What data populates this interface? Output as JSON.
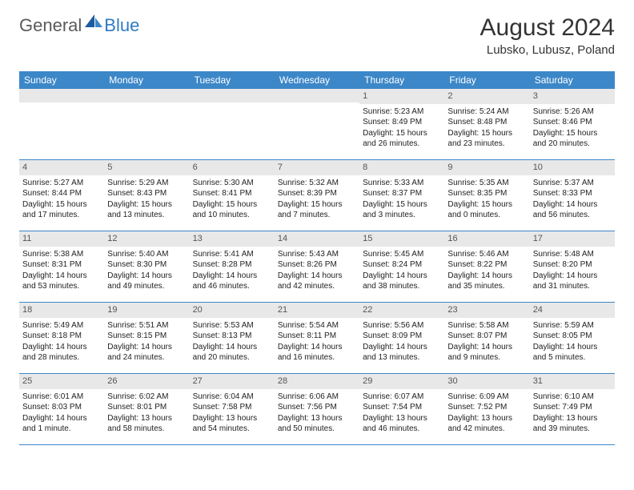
{
  "logo": {
    "general": "General",
    "blue": "Blue"
  },
  "title": "August 2024",
  "location": "Lubsko, Lubusz, Poland",
  "colors": {
    "header_bg": "#3c87c8",
    "header_text": "#ffffff",
    "number_bar_bg": "#e8e8e8",
    "row_border": "#3c87c8",
    "logo_general": "#5a5a5a",
    "logo_blue": "#2f7ac0",
    "text": "#222222"
  },
  "day_headers": [
    "Sunday",
    "Monday",
    "Tuesday",
    "Wednesday",
    "Thursday",
    "Friday",
    "Saturday"
  ],
  "weeks": [
    [
      {
        "n": "",
        "sunrise": "",
        "sunset": "",
        "daylight": ""
      },
      {
        "n": "",
        "sunrise": "",
        "sunset": "",
        "daylight": ""
      },
      {
        "n": "",
        "sunrise": "",
        "sunset": "",
        "daylight": ""
      },
      {
        "n": "",
        "sunrise": "",
        "sunset": "",
        "daylight": ""
      },
      {
        "n": "1",
        "sunrise": "Sunrise: 5:23 AM",
        "sunset": "Sunset: 8:49 PM",
        "daylight": "Daylight: 15 hours and 26 minutes."
      },
      {
        "n": "2",
        "sunrise": "Sunrise: 5:24 AM",
        "sunset": "Sunset: 8:48 PM",
        "daylight": "Daylight: 15 hours and 23 minutes."
      },
      {
        "n": "3",
        "sunrise": "Sunrise: 5:26 AM",
        "sunset": "Sunset: 8:46 PM",
        "daylight": "Daylight: 15 hours and 20 minutes."
      }
    ],
    [
      {
        "n": "4",
        "sunrise": "Sunrise: 5:27 AM",
        "sunset": "Sunset: 8:44 PM",
        "daylight": "Daylight: 15 hours and 17 minutes."
      },
      {
        "n": "5",
        "sunrise": "Sunrise: 5:29 AM",
        "sunset": "Sunset: 8:43 PM",
        "daylight": "Daylight: 15 hours and 13 minutes."
      },
      {
        "n": "6",
        "sunrise": "Sunrise: 5:30 AM",
        "sunset": "Sunset: 8:41 PM",
        "daylight": "Daylight: 15 hours and 10 minutes."
      },
      {
        "n": "7",
        "sunrise": "Sunrise: 5:32 AM",
        "sunset": "Sunset: 8:39 PM",
        "daylight": "Daylight: 15 hours and 7 minutes."
      },
      {
        "n": "8",
        "sunrise": "Sunrise: 5:33 AM",
        "sunset": "Sunset: 8:37 PM",
        "daylight": "Daylight: 15 hours and 3 minutes."
      },
      {
        "n": "9",
        "sunrise": "Sunrise: 5:35 AM",
        "sunset": "Sunset: 8:35 PM",
        "daylight": "Daylight: 15 hours and 0 minutes."
      },
      {
        "n": "10",
        "sunrise": "Sunrise: 5:37 AM",
        "sunset": "Sunset: 8:33 PM",
        "daylight": "Daylight: 14 hours and 56 minutes."
      }
    ],
    [
      {
        "n": "11",
        "sunrise": "Sunrise: 5:38 AM",
        "sunset": "Sunset: 8:31 PM",
        "daylight": "Daylight: 14 hours and 53 minutes."
      },
      {
        "n": "12",
        "sunrise": "Sunrise: 5:40 AM",
        "sunset": "Sunset: 8:30 PM",
        "daylight": "Daylight: 14 hours and 49 minutes."
      },
      {
        "n": "13",
        "sunrise": "Sunrise: 5:41 AM",
        "sunset": "Sunset: 8:28 PM",
        "daylight": "Daylight: 14 hours and 46 minutes."
      },
      {
        "n": "14",
        "sunrise": "Sunrise: 5:43 AM",
        "sunset": "Sunset: 8:26 PM",
        "daylight": "Daylight: 14 hours and 42 minutes."
      },
      {
        "n": "15",
        "sunrise": "Sunrise: 5:45 AM",
        "sunset": "Sunset: 8:24 PM",
        "daylight": "Daylight: 14 hours and 38 minutes."
      },
      {
        "n": "16",
        "sunrise": "Sunrise: 5:46 AM",
        "sunset": "Sunset: 8:22 PM",
        "daylight": "Daylight: 14 hours and 35 minutes."
      },
      {
        "n": "17",
        "sunrise": "Sunrise: 5:48 AM",
        "sunset": "Sunset: 8:20 PM",
        "daylight": "Daylight: 14 hours and 31 minutes."
      }
    ],
    [
      {
        "n": "18",
        "sunrise": "Sunrise: 5:49 AM",
        "sunset": "Sunset: 8:18 PM",
        "daylight": "Daylight: 14 hours and 28 minutes."
      },
      {
        "n": "19",
        "sunrise": "Sunrise: 5:51 AM",
        "sunset": "Sunset: 8:15 PM",
        "daylight": "Daylight: 14 hours and 24 minutes."
      },
      {
        "n": "20",
        "sunrise": "Sunrise: 5:53 AM",
        "sunset": "Sunset: 8:13 PM",
        "daylight": "Daylight: 14 hours and 20 minutes."
      },
      {
        "n": "21",
        "sunrise": "Sunrise: 5:54 AM",
        "sunset": "Sunset: 8:11 PM",
        "daylight": "Daylight: 14 hours and 16 minutes."
      },
      {
        "n": "22",
        "sunrise": "Sunrise: 5:56 AM",
        "sunset": "Sunset: 8:09 PM",
        "daylight": "Daylight: 14 hours and 13 minutes."
      },
      {
        "n": "23",
        "sunrise": "Sunrise: 5:58 AM",
        "sunset": "Sunset: 8:07 PM",
        "daylight": "Daylight: 14 hours and 9 minutes."
      },
      {
        "n": "24",
        "sunrise": "Sunrise: 5:59 AM",
        "sunset": "Sunset: 8:05 PM",
        "daylight": "Daylight: 14 hours and 5 minutes."
      }
    ],
    [
      {
        "n": "25",
        "sunrise": "Sunrise: 6:01 AM",
        "sunset": "Sunset: 8:03 PM",
        "daylight": "Daylight: 14 hours and 1 minute."
      },
      {
        "n": "26",
        "sunrise": "Sunrise: 6:02 AM",
        "sunset": "Sunset: 8:01 PM",
        "daylight": "Daylight: 13 hours and 58 minutes."
      },
      {
        "n": "27",
        "sunrise": "Sunrise: 6:04 AM",
        "sunset": "Sunset: 7:58 PM",
        "daylight": "Daylight: 13 hours and 54 minutes."
      },
      {
        "n": "28",
        "sunrise": "Sunrise: 6:06 AM",
        "sunset": "Sunset: 7:56 PM",
        "daylight": "Daylight: 13 hours and 50 minutes."
      },
      {
        "n": "29",
        "sunrise": "Sunrise: 6:07 AM",
        "sunset": "Sunset: 7:54 PM",
        "daylight": "Daylight: 13 hours and 46 minutes."
      },
      {
        "n": "30",
        "sunrise": "Sunrise: 6:09 AM",
        "sunset": "Sunset: 7:52 PM",
        "daylight": "Daylight: 13 hours and 42 minutes."
      },
      {
        "n": "31",
        "sunrise": "Sunrise: 6:10 AM",
        "sunset": "Sunset: 7:49 PM",
        "daylight": "Daylight: 13 hours and 39 minutes."
      }
    ]
  ]
}
